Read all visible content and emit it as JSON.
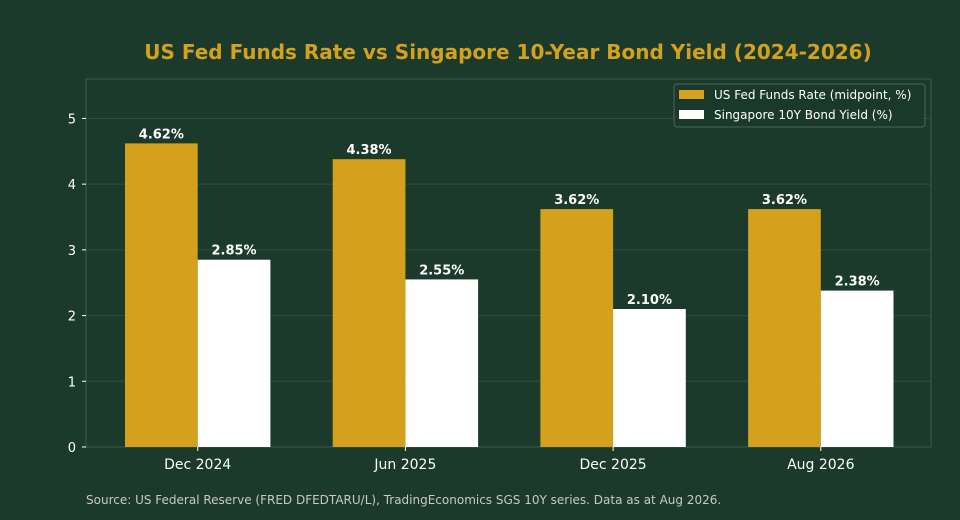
{
  "colors": {
    "background": "#1b3a2c",
    "title": "#d4a11c",
    "series_1": "#d4a11c",
    "series_2": "#ffffff",
    "grid": "#2f5040",
    "axes": "#3d5a4b",
    "text": "#ffffff",
    "source": "#c9c9c0"
  },
  "chart_data": {
    "type": "bar",
    "title": "US Fed Funds Rate vs Singapore 10-Year Bond Yield (2024-2026)",
    "xlabel": "",
    "ylabel": "",
    "categories": [
      "Dec 2024",
      "Jun 2025",
      "Dec 2025",
      "Aug 2026"
    ],
    "series": [
      {
        "name": "US Fed Funds Rate (midpoint, %)",
        "values": [
          4.62,
          4.38,
          3.62,
          3.62
        ],
        "labels": [
          "4.62%",
          "4.38%",
          "3.62%",
          "3.62%"
        ]
      },
      {
        "name": "Singapore 10Y Bond Yield (%)",
        "values": [
          2.85,
          2.55,
          2.1,
          2.38
        ],
        "labels": [
          "2.85%",
          "2.55%",
          "2.10%",
          "2.38%"
        ]
      }
    ],
    "yticks": [
      0,
      1,
      2,
      3,
      4,
      5
    ],
    "ylim": [
      0,
      5.6
    ],
    "grid": true,
    "legend_position": "top-right"
  },
  "source_note": "Source: US Federal Reserve (FRED DFEDTARU/L), TradingEconomics SGS 10Y series. Data as at Aug 2026."
}
